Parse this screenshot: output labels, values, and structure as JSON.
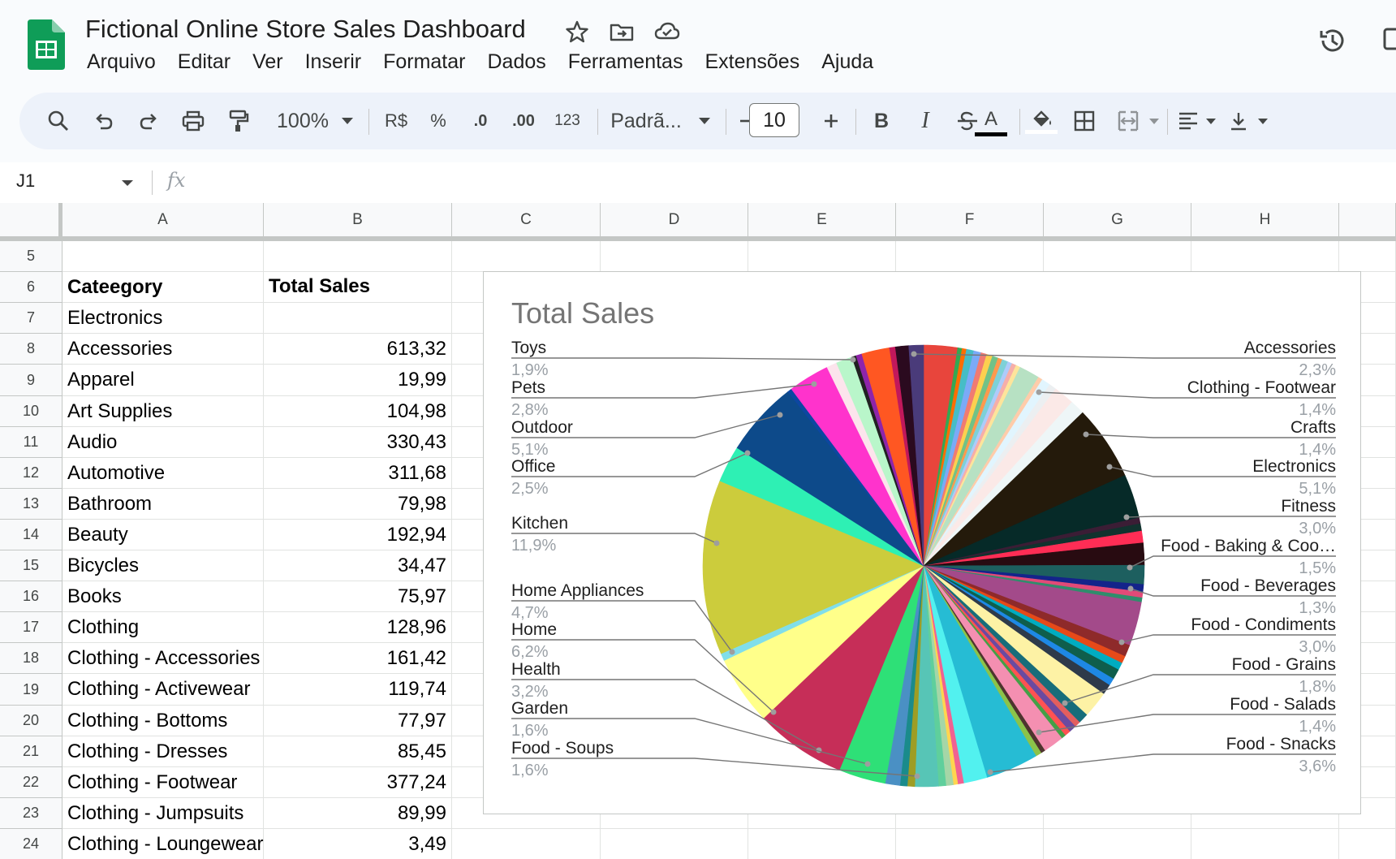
{
  "app": {
    "doc_title": "Fictional Online Store Sales Dashboard",
    "menu": [
      "Arquivo",
      "Editar",
      "Ver",
      "Inserir",
      "Formatar",
      "Dados",
      "Ferramentas",
      "Extensões",
      "Ajuda"
    ],
    "brand_color": "#0f9d58"
  },
  "toolbar": {
    "zoom": "100%",
    "currency": "R$",
    "percent": "%",
    "decrease_decimals": ".0",
    "increase_decimals": ".00",
    "number_format": "123",
    "font": "Padrã...",
    "font_size": "10",
    "bold": "B",
    "italic": "I",
    "text_color_glyph": "A"
  },
  "formula_bar": {
    "cell_ref": "J1",
    "fx": "fx",
    "value": ""
  },
  "sheet": {
    "columns": [
      "A",
      "B",
      "C",
      "D",
      "E",
      "F",
      "G",
      "H"
    ],
    "rows": [
      {
        "n": "5",
        "a": "",
        "b": ""
      },
      {
        "n": "6",
        "a": "Cateegory",
        "b": "Total Sales"
      },
      {
        "n": "7",
        "a": "Electronics",
        "b": ""
      },
      {
        "n": "8",
        "a": "Accessories",
        "b": "613,32"
      },
      {
        "n": "9",
        "a": "Apparel",
        "b": "19,99"
      },
      {
        "n": "10",
        "a": "Art Supplies",
        "b": "104,98"
      },
      {
        "n": "11",
        "a": "Audio",
        "b": "330,43"
      },
      {
        "n": "12",
        "a": "Automotive",
        "b": "311,68"
      },
      {
        "n": "13",
        "a": "Bathroom",
        "b": "79,98"
      },
      {
        "n": "14",
        "a": "Beauty",
        "b": "192,94"
      },
      {
        "n": "15",
        "a": "Bicycles",
        "b": "34,47"
      },
      {
        "n": "16",
        "a": "Books",
        "b": "75,97"
      },
      {
        "n": "17",
        "a": "Clothing",
        "b": "128,96"
      },
      {
        "n": "18",
        "a": "Clothing - Accessories",
        "b": "161,42"
      },
      {
        "n": "19",
        "a": "Clothing - Activewear",
        "b": "119,74"
      },
      {
        "n": "20",
        "a": "Clothing - Bottoms",
        "b": "77,97"
      },
      {
        "n": "21",
        "a": "Clothing - Dresses",
        "b": "85,45"
      },
      {
        "n": "22",
        "a": "Clothing - Footwear",
        "b": "377,24"
      },
      {
        "n": "23",
        "a": "Clothing - Jumpsuits",
        "b": "89,99"
      },
      {
        "n": "24",
        "a": "Clothing - Loungewear",
        "b": "3,49"
      }
    ]
  },
  "chart_data": {
    "type": "pie",
    "title": "Total Sales",
    "labels_left": [
      {
        "name": "Toys",
        "pct": "1,9%"
      },
      {
        "name": "Pets",
        "pct": "2,8%"
      },
      {
        "name": "Outdoor",
        "pct": "5,1%"
      },
      {
        "name": "Office",
        "pct": "2,5%"
      },
      {
        "name": "Kitchen",
        "pct": "11,9%"
      },
      {
        "name": "Home Appliances",
        "pct": "4,7%"
      },
      {
        "name": "Home",
        "pct": "6,2%"
      },
      {
        "name": "Health",
        "pct": "3,2%"
      },
      {
        "name": "Garden",
        "pct": "1,6%"
      },
      {
        "name": "Food - Soups",
        "pct": "1,6%"
      }
    ],
    "labels_right": [
      {
        "name": "Accessories",
        "pct": "2,3%"
      },
      {
        "name": "Clothing - Footwear",
        "pct": "1,4%"
      },
      {
        "name": "Crafts",
        "pct": "1,4%"
      },
      {
        "name": "Electronics",
        "pct": "5,1%"
      },
      {
        "name": "Fitness",
        "pct": "3,0%"
      },
      {
        "name": "Food - Baking & Coo…",
        "pct": "1,5%"
      },
      {
        "name": "Food - Beverages",
        "pct": "1,3%"
      },
      {
        "name": "Food - Condiments",
        "pct": "3,0%"
      },
      {
        "name": "Food - Grains",
        "pct": "1,8%"
      },
      {
        "name": "Food - Salads",
        "pct": "1,4%"
      },
      {
        "name": "Food - Snacks",
        "pct": "3,6%"
      }
    ],
    "slices_clockwise_from_top": [
      {
        "value": 2.3,
        "color": "#e8453c"
      },
      {
        "value": 0.3,
        "color": "#34a853"
      },
      {
        "value": 0.3,
        "color": "#ff6d01"
      },
      {
        "value": 0.5,
        "color": "#46bdc6"
      },
      {
        "value": 0.5,
        "color": "#7baaf7"
      },
      {
        "value": 0.4,
        "color": "#f07b72"
      },
      {
        "value": 0.4,
        "color": "#fcd04f"
      },
      {
        "value": 0.4,
        "color": "#71c287"
      },
      {
        "value": 0.3,
        "color": "#ff994d"
      },
      {
        "value": 0.4,
        "color": "#7ed1d7"
      },
      {
        "value": 0.3,
        "color": "#aecbfa"
      },
      {
        "value": 0.3,
        "color": "#f6aea9"
      },
      {
        "value": 0.3,
        "color": "#fde49b"
      },
      {
        "value": 1.4,
        "color": "#b7e1c3"
      },
      {
        "value": 0.3,
        "color": "#ffccaa"
      },
      {
        "value": 0.6,
        "color": "#e1f5fe"
      },
      {
        "value": 0.5,
        "color": "#eceff1"
      },
      {
        "value": 1.4,
        "color": "#fbe9e7"
      },
      {
        "value": 1.0,
        "color": "#eef6f7"
      },
      {
        "value": 5.1,
        "color": "#241a0b"
      },
      {
        "value": 3.0,
        "color": "#062a28"
      },
      {
        "value": 0.4,
        "color": "#3b1d35"
      },
      {
        "value": 0.5,
        "color": "#11322e"
      },
      {
        "value": 0.8,
        "color": "#ff2d55"
      },
      {
        "value": 1.5,
        "color": "#280b11"
      },
      {
        "value": 1.3,
        "color": "#1d5f5f"
      },
      {
        "value": 0.5,
        "color": "#14248a"
      },
      {
        "value": 0.4,
        "color": "#e24a78"
      },
      {
        "value": 0.3,
        "color": "#2f8d6c"
      },
      {
        "value": 3.0,
        "color": "#a34a8a"
      },
      {
        "value": 0.8,
        "color": "#8e2a2a"
      },
      {
        "value": 0.5,
        "color": "#e64a19"
      },
      {
        "value": 0.5,
        "color": "#00acc1"
      },
      {
        "value": 0.7,
        "color": "#0f5e4c"
      },
      {
        "value": 0.5,
        "color": "#1e88e5"
      },
      {
        "value": 0.7,
        "color": "#2e3a4a"
      },
      {
        "value": 1.8,
        "color": "#fdf2a5"
      },
      {
        "value": 0.7,
        "color": "#176d7a"
      },
      {
        "value": 0.4,
        "color": "#e35e5e"
      },
      {
        "value": 0.5,
        "color": "#6b4aa0"
      },
      {
        "value": 0.4,
        "color": "#ff5252"
      },
      {
        "value": 0.3,
        "color": "#43a047"
      },
      {
        "value": 1.4,
        "color": "#f48fb1"
      },
      {
        "value": 0.3,
        "color": "#4e342e"
      },
      {
        "value": 0.4,
        "color": "#8bc34a"
      },
      {
        "value": 3.6,
        "color": "#26bcd4"
      },
      {
        "value": 1.6,
        "color": "#52f1ef"
      },
      {
        "value": 0.4,
        "color": "#f06292"
      },
      {
        "value": 0.3,
        "color": "#ffd54f"
      },
      {
        "value": 0.5,
        "color": "#a5d6a7"
      },
      {
        "value": 0.5,
        "color": "#5fcf9c"
      },
      {
        "value": 1.6,
        "color": "#57c5b6"
      },
      {
        "value": 0.5,
        "color": "#9e9d24"
      },
      {
        "value": 0.5,
        "color": "#1a8b8b"
      },
      {
        "value": 1.0,
        "color": "#4a90c4"
      },
      {
        "value": 3.2,
        "color": "#2ee077"
      },
      {
        "value": 6.2,
        "color": "#c62e58"
      },
      {
        "value": 4.7,
        "color": "#ffff8a"
      },
      {
        "value": 0.5,
        "color": "#80deea"
      },
      {
        "value": 11.9,
        "color": "#cccc3c"
      },
      {
        "value": 2.5,
        "color": "#2ef0b4"
      },
      {
        "value": 5.1,
        "color": "#0d4a8a"
      },
      {
        "value": 0.3,
        "color": "#0d47a1"
      },
      {
        "value": 2.8,
        "color": "#ff33cc"
      },
      {
        "value": 0.7,
        "color": "#fce4ec"
      },
      {
        "value": 1.1,
        "color": "#b9f6ca"
      },
      {
        "value": 0.3,
        "color": "#212121"
      },
      {
        "value": 0.4,
        "color": "#8e24aa"
      },
      {
        "value": 1.9,
        "color": "#ff5722"
      },
      {
        "value": 0.4,
        "color": "#c2185b"
      },
      {
        "value": 0.9,
        "color": "#2b0a1f"
      },
      {
        "value": 1.0,
        "color": "#4a3b7a"
      }
    ]
  }
}
